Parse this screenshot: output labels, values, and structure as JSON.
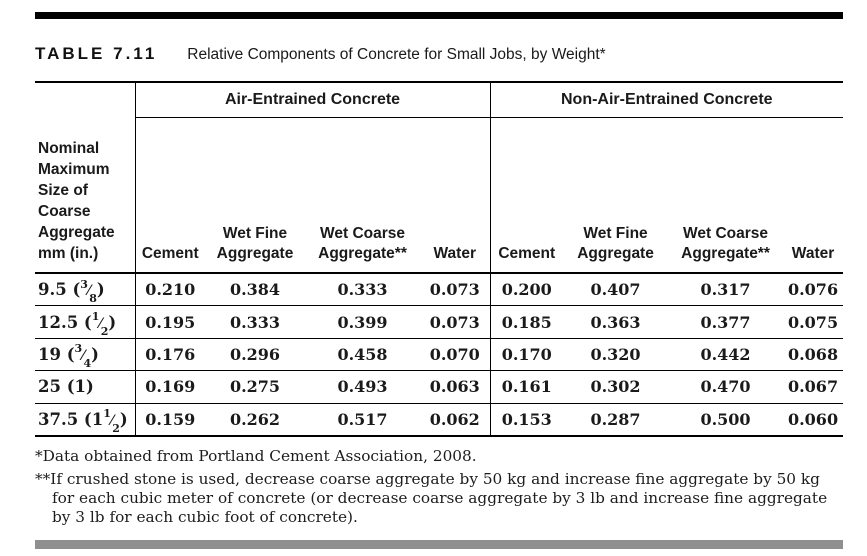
{
  "title": {
    "label": "TABLE 7.11",
    "caption": "Relative Components of Concrete for Small Jobs, by Weight*"
  },
  "table": {
    "stub_header": "Nominal\nMaximum\nSize of\nCoarse\nAggregate\nmm (in.)",
    "group_headers": [
      "Air-Entrained Concrete",
      "Non-Air-Entrained Concrete"
    ],
    "column_headers": [
      "Cement",
      "Wet Fine\nAggregate",
      "Wet Coarse\nAggregate**",
      "Water",
      "Cement",
      "Wet Fine\nAggregate",
      "Wet Coarse\nAggregate**",
      "Water"
    ],
    "rows": [
      {
        "size_mm": "9.5",
        "size_in": {
          "whole": "",
          "num": "3",
          "den": "8"
        },
        "air": [
          "0.210",
          "0.384",
          "0.333",
          "0.073"
        ],
        "non_air": [
          "0.200",
          "0.407",
          "0.317",
          "0.076"
        ]
      },
      {
        "size_mm": "12.5",
        "size_in": {
          "whole": "",
          "num": "1",
          "den": "2"
        },
        "air": [
          "0.195",
          "0.333",
          "0.399",
          "0.073"
        ],
        "non_air": [
          "0.185",
          "0.363",
          "0.377",
          "0.075"
        ]
      },
      {
        "size_mm": "19",
        "size_in": {
          "whole": "",
          "num": "3",
          "den": "4"
        },
        "air": [
          "0.176",
          "0.296",
          "0.458",
          "0.070"
        ],
        "non_air": [
          "0.170",
          "0.320",
          "0.442",
          "0.068"
        ]
      },
      {
        "size_mm": "25",
        "size_in": {
          "whole": "1",
          "num": "",
          "den": ""
        },
        "air": [
          "0.169",
          "0.275",
          "0.493",
          "0.063"
        ],
        "non_air": [
          "0.161",
          "0.302",
          "0.470",
          "0.067"
        ]
      },
      {
        "size_mm": "37.5",
        "size_in": {
          "whole": "1",
          "num": "1",
          "den": "2"
        },
        "air": [
          "0.159",
          "0.262",
          "0.517",
          "0.062"
        ],
        "non_air": [
          "0.153",
          "0.287",
          "0.500",
          "0.060"
        ]
      }
    ]
  },
  "footnotes": [
    "*Data obtained from Portland Cement Association, 2008.",
    "**If crushed stone is used, decrease coarse aggregate by 50 kg and increase fine aggregate by 50 kg for each cubic meter of concrete (or decrease coarse aggregate by 3 lb and increase fine aggregate by 3 lb for each cubic foot of concrete)."
  ],
  "colors": {
    "rule_black": "#000000",
    "bottom_bar_gray": "#8f8f8f",
    "text": "#1a1a1a"
  }
}
